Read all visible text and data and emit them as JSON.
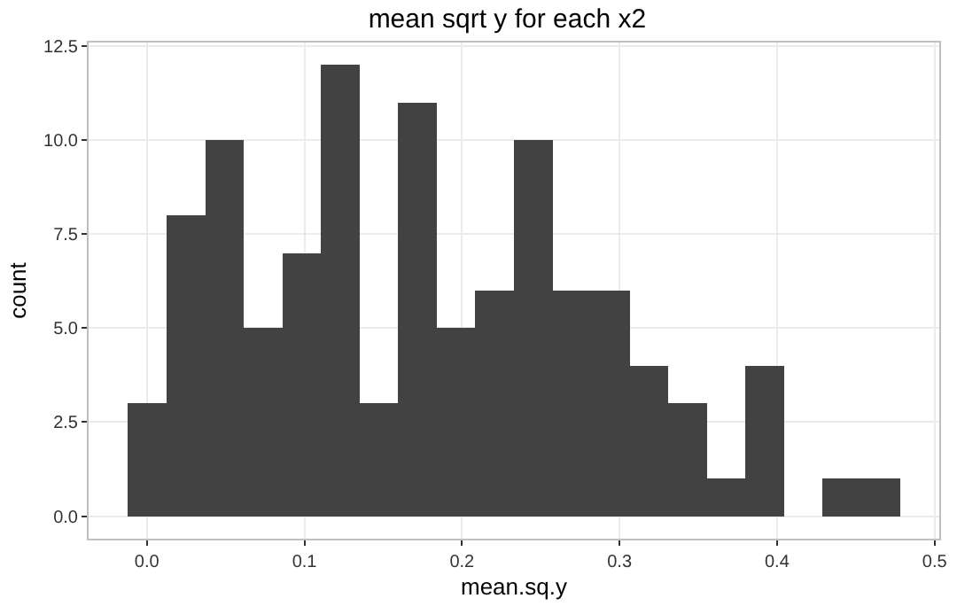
{
  "chart_data": {
    "type": "histogram",
    "title": "mean sqrt y for each x2",
    "xlabel": "mean.sq.y",
    "ylabel": "count",
    "bins": [
      -0.012,
      0.0125,
      0.037,
      0.0615,
      0.086,
      0.1105,
      0.135,
      0.1595,
      0.184,
      0.2085,
      0.233,
      0.2575,
      0.282,
      0.3065,
      0.331,
      0.3555,
      0.38,
      0.4045,
      0.429,
      0.4535,
      0.478
    ],
    "values": [
      3,
      8,
      10,
      5,
      7,
      12,
      3,
      11,
      5,
      6,
      10,
      6,
      6,
      4,
      3,
      1,
      4,
      0,
      1,
      1
    ],
    "color": "#424242",
    "xlim": [
      -0.037,
      0.503
    ],
    "xticks": [
      {
        "value": 0,
        "label": "0.0"
      },
      {
        "value": 0.1,
        "label": "0.1"
      },
      {
        "value": 0.2,
        "label": "0.2"
      },
      {
        "value": 0.3,
        "label": "0.3"
      },
      {
        "value": 0.4,
        "label": "0.4"
      },
      {
        "value": 0.5,
        "label": "0.5"
      }
    ],
    "ylim": [
      -0.6,
      12.6
    ],
    "yticks": [
      {
        "value": 0,
        "label": "0.0"
      },
      {
        "value": 2.5,
        "label": "2.5"
      },
      {
        "value": 5,
        "label": "5.0"
      },
      {
        "value": 7.5,
        "label": "7.5"
      },
      {
        "value": 10,
        "label": "10.0"
      },
      {
        "value": 12.5,
        "label": "12.5"
      }
    ],
    "grid": true
  }
}
